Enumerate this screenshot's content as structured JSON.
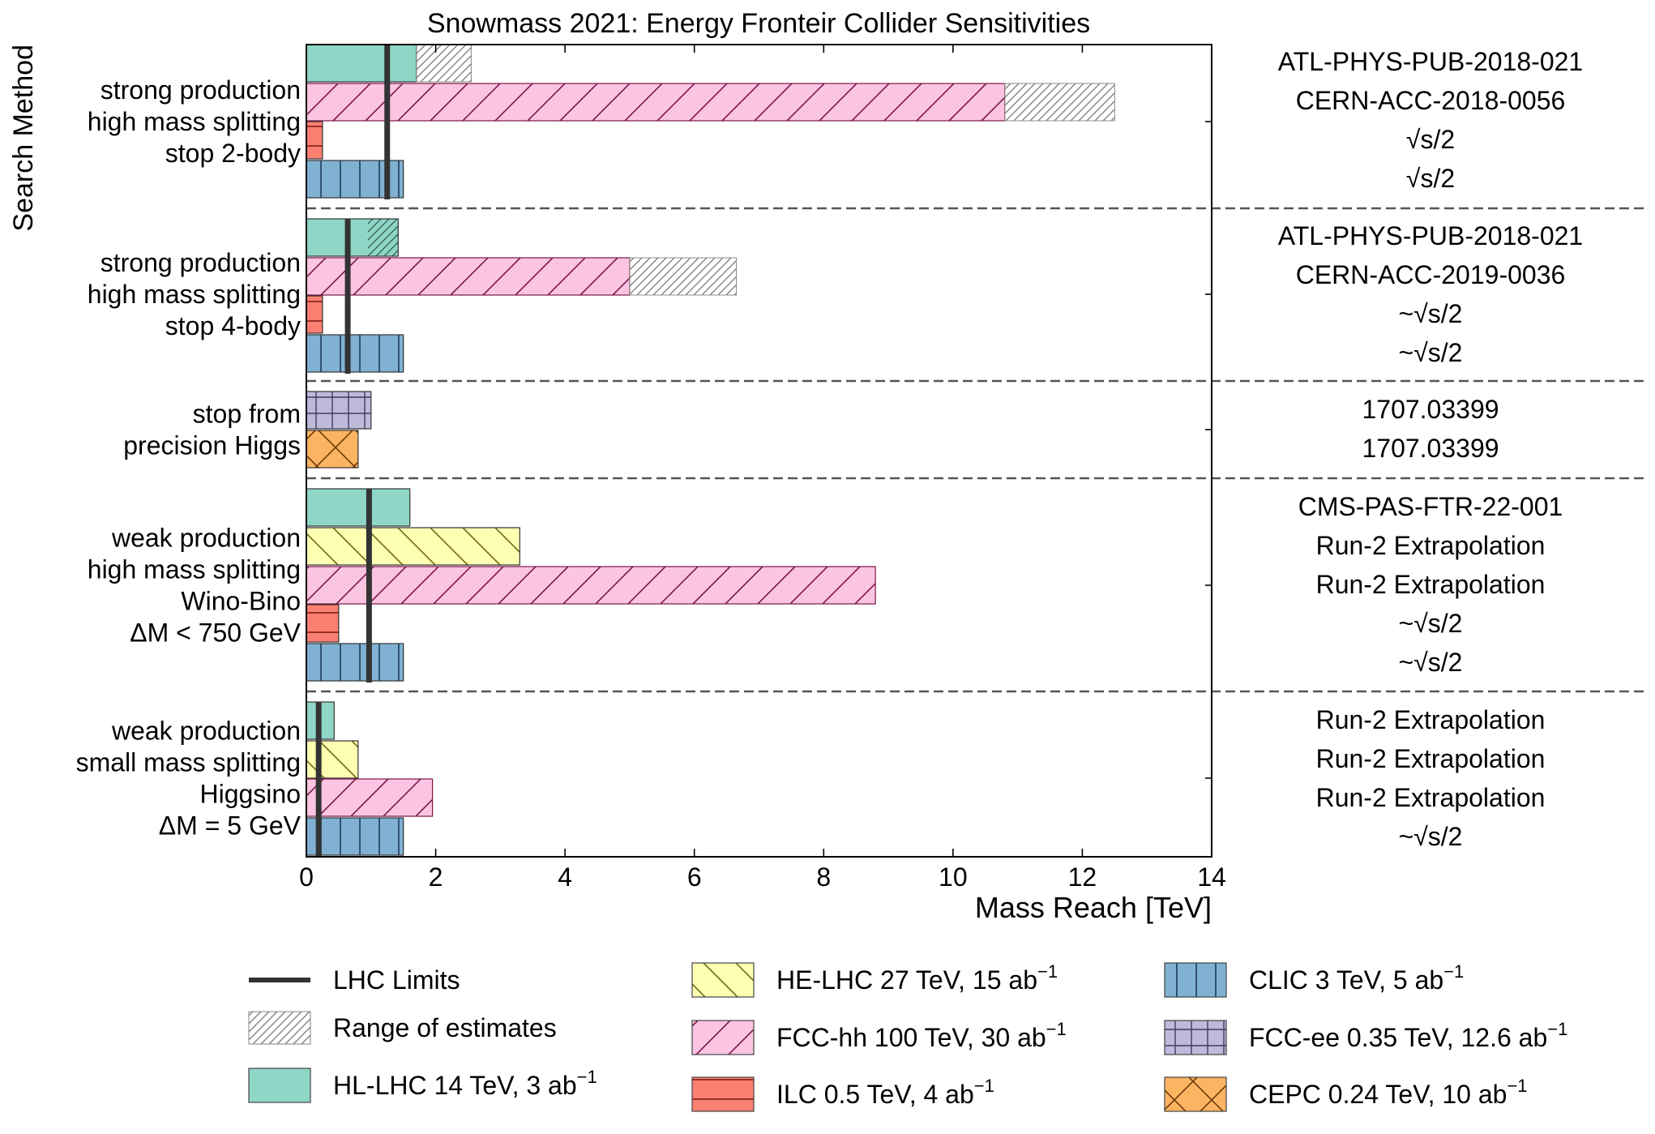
{
  "chart_data": {
    "type": "bar",
    "orientation": "horizontal",
    "title": "Snowmass 2021: Energy Fronteir Collider Sensitivities",
    "xlabel": "Mass Reach [TeV]",
    "ylabel": "Search Method",
    "xlim": [
      0,
      14
    ],
    "xticks": [
      "0",
      "2",
      "4",
      "6",
      "8",
      "10",
      "12",
      "14"
    ],
    "grid": false,
    "legend_position": "bottom",
    "colliders": {
      "hllhc": {
        "color": "#8fd6c6",
        "hatch": "none"
      },
      "helhc": {
        "color": "#ffffb3",
        "hatch": "backslash"
      },
      "fcchh": {
        "color": "#fbc5e2",
        "hatch": "slash"
      },
      "ilc": {
        "color": "#fb8072",
        "hatch": "horizontal"
      },
      "clic": {
        "color": "#80b1d3",
        "hatch": "vertical"
      },
      "fccee": {
        "color": "#bebada",
        "hatch": "grid"
      },
      "cepc": {
        "color": "#fdb462",
        "hatch": "cross"
      }
    },
    "legend": [
      {
        "key": "lhc",
        "label": "LHC Limits",
        "sup": ""
      },
      {
        "key": "range",
        "label": "Range of estimates",
        "sup": ""
      },
      {
        "key": "hllhc",
        "label": "HL-LHC 14 TeV, 3 ab",
        "sup": "−1"
      },
      {
        "key": "helhc",
        "label": "HE-LHC 27 TeV, 15 ab",
        "sup": "−1"
      },
      {
        "key": "fcchh",
        "label": "FCC-hh 100 TeV, 30 ab",
        "sup": "−1"
      },
      {
        "key": "ilc",
        "label": "ILC 0.5 TeV, 4 ab",
        "sup": "−1"
      },
      {
        "key": "clic",
        "label": "CLIC 3 TeV, 5 ab",
        "sup": "−1"
      },
      {
        "key": "fccee",
        "label": "FCC-ee 0.35 TeV, 12.6 ab",
        "sup": "−1"
      },
      {
        "key": "cepc",
        "label": "CEPC 0.24 TeV, 10 ab",
        "sup": "−1"
      }
    ],
    "groups": [
      {
        "labels": [
          "strong production",
          "high mass splitting",
          "stop 2-body"
        ],
        "lhc_limit": 1.25,
        "bars": [
          {
            "collider": "hllhc",
            "value": 1.7,
            "range_max": 2.55
          },
          {
            "collider": "fcchh",
            "value": 10.8,
            "range_max": 12.5
          },
          {
            "collider": "ilc",
            "value": 0.25
          },
          {
            "collider": "clic",
            "value": 1.5
          }
        ],
        "references": [
          "ATL-PHYS-PUB-2018-021",
          "CERN-ACC-2018-0056",
          "√s/2",
          "√s/2"
        ]
      },
      {
        "labels": [
          "strong production",
          "high mass splitting",
          "stop 4-body"
        ],
        "lhc_limit": 0.64,
        "bars": [
          {
            "collider": "hllhc",
            "value": 1.42,
            "range_min": 0.95
          },
          {
            "collider": "fcchh",
            "value": 5.0,
            "range_max": 6.65
          },
          {
            "collider": "ilc",
            "value": 0.25
          },
          {
            "collider": "clic",
            "value": 1.5
          }
        ],
        "references": [
          "ATL-PHYS-PUB-2018-021",
          "CERN-ACC-2019-0036",
          "~√s/2",
          "~√s/2"
        ]
      },
      {
        "labels": [
          "stop from",
          "precision Higgs"
        ],
        "bars": [
          {
            "collider": "fccee",
            "value": 1.0
          },
          {
            "collider": "cepc",
            "value": 0.8
          }
        ],
        "references": [
          "1707.03399",
          "1707.03399"
        ]
      },
      {
        "labels": [
          "weak production",
          "high mass splitting",
          "Wino-Bino",
          "ΔM < 750 GeV"
        ],
        "lhc_limit": 0.97,
        "bars": [
          {
            "collider": "hllhc",
            "value": 1.6
          },
          {
            "collider": "helhc",
            "value": 3.3
          },
          {
            "collider": "fcchh",
            "value": 8.8
          },
          {
            "collider": "ilc",
            "value": 0.5
          },
          {
            "collider": "clic",
            "value": 1.5
          }
        ],
        "references": [
          "CMS-PAS-FTR-22-001",
          "Run-2 Extrapolation",
          "Run-2 Extrapolation",
          "~√s/2",
          "~√s/2"
        ]
      },
      {
        "labels": [
          "weak production",
          "small mass splitting",
          "Higgsino",
          "ΔM = 5 GeV"
        ],
        "lhc_limit": 0.19,
        "bars": [
          {
            "collider": "hllhc",
            "value": 0.43
          },
          {
            "collider": "helhc",
            "value": 0.8
          },
          {
            "collider": "fcchh",
            "value": 1.95
          },
          {
            "collider": "clic",
            "value": 1.5
          }
        ],
        "references": [
          "Run-2 Extrapolation",
          "Run-2 Extrapolation",
          "Run-2 Extrapolation",
          "~√s/2"
        ]
      }
    ]
  }
}
